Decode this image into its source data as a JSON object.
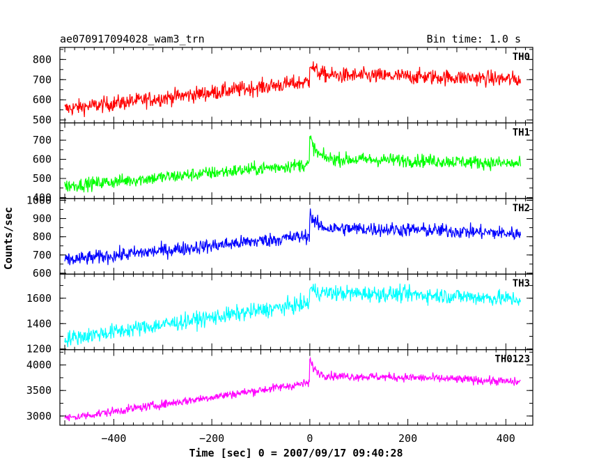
{
  "header": {
    "title": "ae070917094028_wam3_trn",
    "bin_time": "Bin time: 1.0 s"
  },
  "chart_data": {
    "type": "line",
    "xlabel": "Time [sec] 0 = 2007/09/17 09:40:28",
    "ylabel": "Counts/sec",
    "xlim": [
      -510,
      455
    ],
    "x_ticks": [
      -400,
      -200,
      0,
      200,
      400
    ],
    "x_tick_labels": [
      "−400",
      "−200",
      "0",
      "200",
      "400"
    ],
    "x_range_data": [
      -500,
      430
    ],
    "grid": false,
    "panels": [
      {
        "name": "TH0",
        "color": "#ff0000",
        "ylim": [
          485,
          860
        ],
        "y_ticks": [
          500,
          600,
          700,
          800
        ],
        "y_tick_labels": [
          "500",
          "600",
          "700",
          "800"
        ],
        "pre_start": 555,
        "pre_end": 690,
        "peak": 790,
        "post_level": 720,
        "end_level": 700,
        "noise": 28
      },
      {
        "name": "TH1",
        "color": "#00ff00",
        "ylim": [
          395,
          790
        ],
        "y_ticks": [
          400,
          500,
          600,
          700
        ],
        "y_tick_labels": [
          "400",
          "500",
          "600",
          "700"
        ],
        "pre_start": 460,
        "pre_end": 575,
        "peak": 720,
        "post_level": 600,
        "end_level": 575,
        "noise": 25
      },
      {
        "name": "TH2",
        "color": "#0000ff",
        "ylim": [
          595,
          1010
        ],
        "y_ticks": [
          600,
          700,
          800,
          900,
          1000
        ],
        "y_tick_labels": [
          "600",
          "700",
          "800",
          "900",
          "1000"
        ],
        "pre_start": 670,
        "pre_end": 805,
        "peak": 930,
        "post_level": 845,
        "end_level": 815,
        "noise": 28
      },
      {
        "name": "TH3",
        "color": "#00ffff",
        "ylim": [
          1195,
          1790
        ],
        "y_ticks": [
          1200,
          1400,
          1600
        ],
        "y_tick_labels": [
          "1200",
          "1400",
          "1600"
        ],
        "pre_start": 1280,
        "pre_end": 1560,
        "peak": 1680,
        "post_level": 1640,
        "end_level": 1590,
        "noise": 45
      },
      {
        "name": "TH0123",
        "color": "#ff00ff",
        "ylim": [
          2820,
          4300
        ],
        "y_ticks": [
          3000,
          3500,
          4000
        ],
        "y_tick_labels": [
          "3000",
          "3500",
          "4000"
        ],
        "pre_start": 2950,
        "pre_end": 3650,
        "peak": 4100,
        "post_level": 3780,
        "end_level": 3660,
        "noise": 60
      }
    ]
  }
}
